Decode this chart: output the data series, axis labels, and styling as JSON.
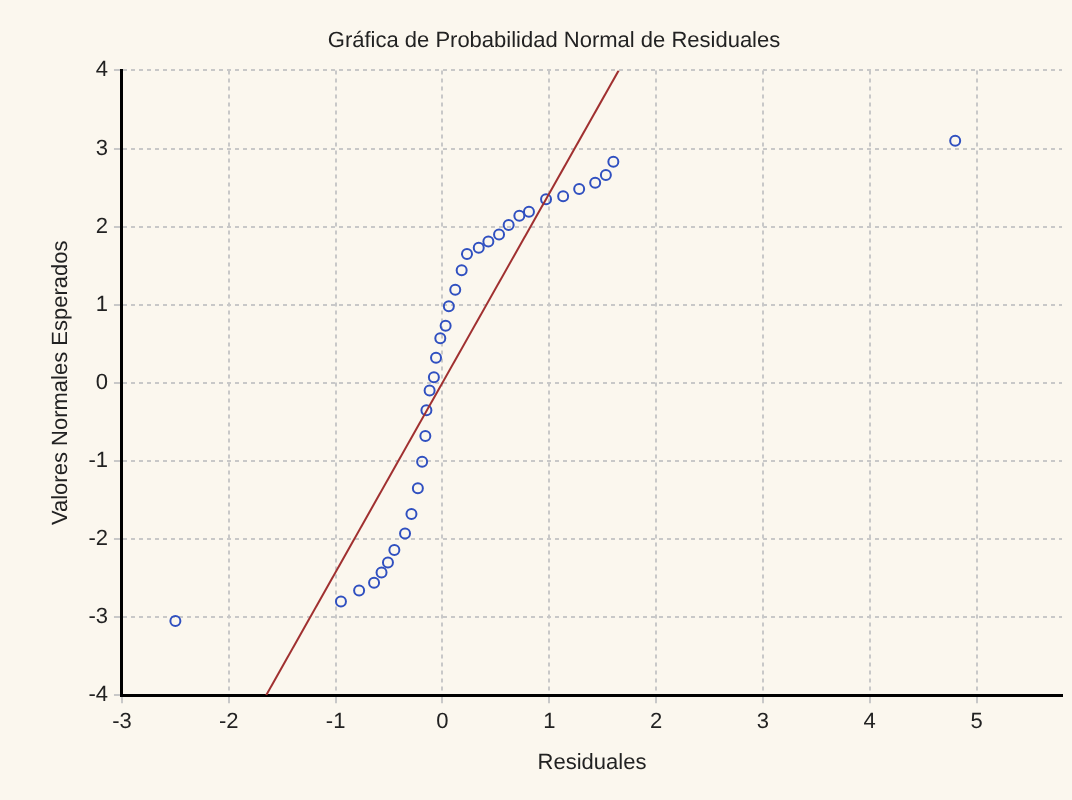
{
  "chart_data": {
    "type": "scatter",
    "title": "Gráfica de Probabilidad Normal de Residuales",
    "xlabel": "Residuales",
    "ylabel": "Valores Normales Esperados",
    "xlim": [
      -3,
      5.8
    ],
    "xticks": [
      -3,
      -2,
      -1,
      0,
      1,
      2,
      3,
      4,
      5
    ],
    "ylim": [
      -4,
      4
    ],
    "yticks": [
      -4,
      -3,
      -2,
      -1,
      0,
      1,
      2,
      3,
      4
    ],
    "grid": true,
    "legend": false,
    "series": [
      {
        "marker": "circle",
        "color": "#3050c0",
        "x": [
          -2.5,
          -0.95,
          -0.78,
          -0.64,
          -0.57,
          -0.51,
          -0.45,
          -0.35,
          -0.29,
          -0.23,
          -0.19,
          -0.16,
          -0.15,
          -0.12,
          -0.08,
          -0.06,
          -0.02,
          0.03,
          0.06,
          0.12,
          0.18,
          0.23,
          0.34,
          0.43,
          0.53,
          0.62,
          0.72,
          0.81,
          0.97,
          1.13,
          1.28,
          1.43,
          1.53,
          1.6,
          4.8
        ],
        "values": [
          -3.05,
          -2.8,
          -2.66,
          -2.56,
          -2.43,
          -2.3,
          -2.14,
          -1.93,
          -1.68,
          -1.35,
          -1.01,
          -0.68,
          -0.35,
          -0.1,
          0.07,
          0.32,
          0.57,
          0.73,
          0.98,
          1.19,
          1.44,
          1.65,
          1.73,
          1.81,
          1.9,
          2.02,
          2.14,
          2.19,
          2.35,
          2.39,
          2.48,
          2.56,
          2.66,
          2.83,
          3.1
        ]
      },
      {
        "type": "line",
        "marker": "none",
        "color": "#a03030",
        "x": [
          -1.65,
          1.65
        ],
        "values": [
          -4,
          4
        ]
      }
    ]
  }
}
